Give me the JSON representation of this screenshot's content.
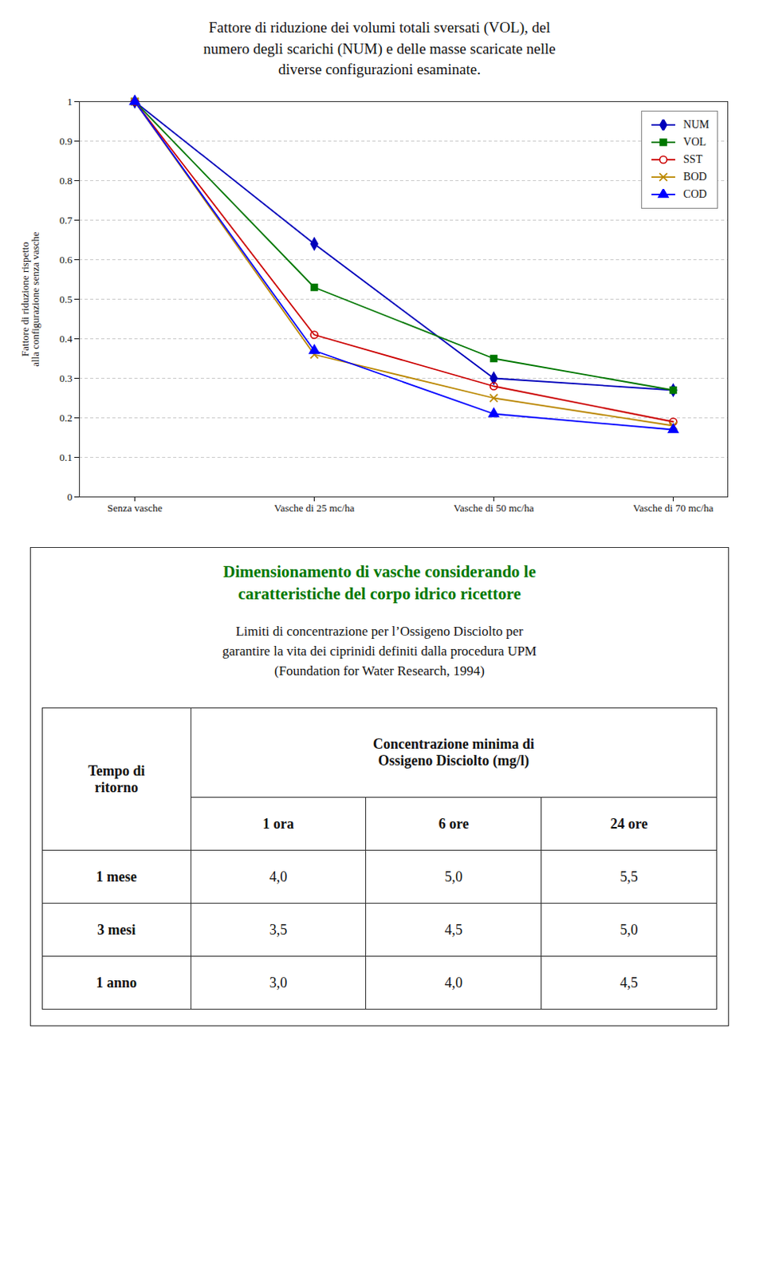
{
  "chart_data": {
    "type": "line",
    "title": "Fattore di riduzione dei volumi totali sversati (VOL), del\nnumero degli scarichi (NUM) e delle masse scaricate nelle\ndiverse configurazioni esaminate.",
    "categories": [
      "Senza vasche",
      "Vasche di 25 mc/ha",
      "Vasche di 50 mc/ha",
      "Vasche di 70 mc/ha"
    ],
    "series": [
      {
        "name": "NUM",
        "color": "#0000BB",
        "marker": "diamond",
        "line_style": "solid",
        "values": [
          1.0,
          0.64,
          0.3,
          0.27
        ]
      },
      {
        "name": "VOL",
        "color": "#007700",
        "marker": "square",
        "line_style": "solid",
        "values": [
          1.0,
          0.53,
          0.35,
          0.27
        ]
      },
      {
        "name": "SST",
        "color": "#CC0000",
        "marker": "circle-open",
        "line_style": "solid",
        "values": [
          1.0,
          0.41,
          0.28,
          0.19
        ]
      },
      {
        "name": "BOD",
        "color": "#BB8800",
        "marker": "x",
        "line_style": "solid",
        "values": [
          1.0,
          0.36,
          0.25,
          0.18
        ]
      },
      {
        "name": "COD",
        "color": "#0000FF",
        "marker": "triangle",
        "line_style": "solid",
        "values": [
          1.0,
          0.37,
          0.21,
          0.17
        ]
      }
    ],
    "ylabel": "Fattore di riduzione rispetto\nalla configurazione senza vasche",
    "ylim": [
      0,
      1.0
    ],
    "yticks": [
      0,
      0.1,
      0.2,
      0.3,
      0.4,
      0.5,
      0.6,
      0.7,
      0.8,
      0.9,
      1
    ],
    "grid": true,
    "legend": "top-right"
  },
  "table": {
    "title": "Dimensionamento di vasche considerando le\ncaratteristiche del corpo idrico ricettore",
    "subtitle": "Limiti di concentrazione per l’Ossigeno Disciolto per\ngarantire la vita dei ciprinidi definiti dalla procedura UPM\n(Foundation for Water Research, 1994)",
    "column_headers": [
      "Tempo di\nritorno",
      "Concentrazione minima di\nOssigeno Disciolto (mg/l)"
    ],
    "sub_headers": [
      "1 ora",
      "6 ore",
      "24 ore"
    ],
    "rows": [
      {
        "label": "1 mese",
        "values": [
          "4,0",
          "5,0",
          "5,5"
        ]
      },
      {
        "label": "3 mesi",
        "values": [
          "3,5",
          "4,5",
          "5,0"
        ]
      },
      {
        "label": "1 anno",
        "values": [
          "3,0",
          "4,0",
          "4,5"
        ]
      }
    ]
  }
}
